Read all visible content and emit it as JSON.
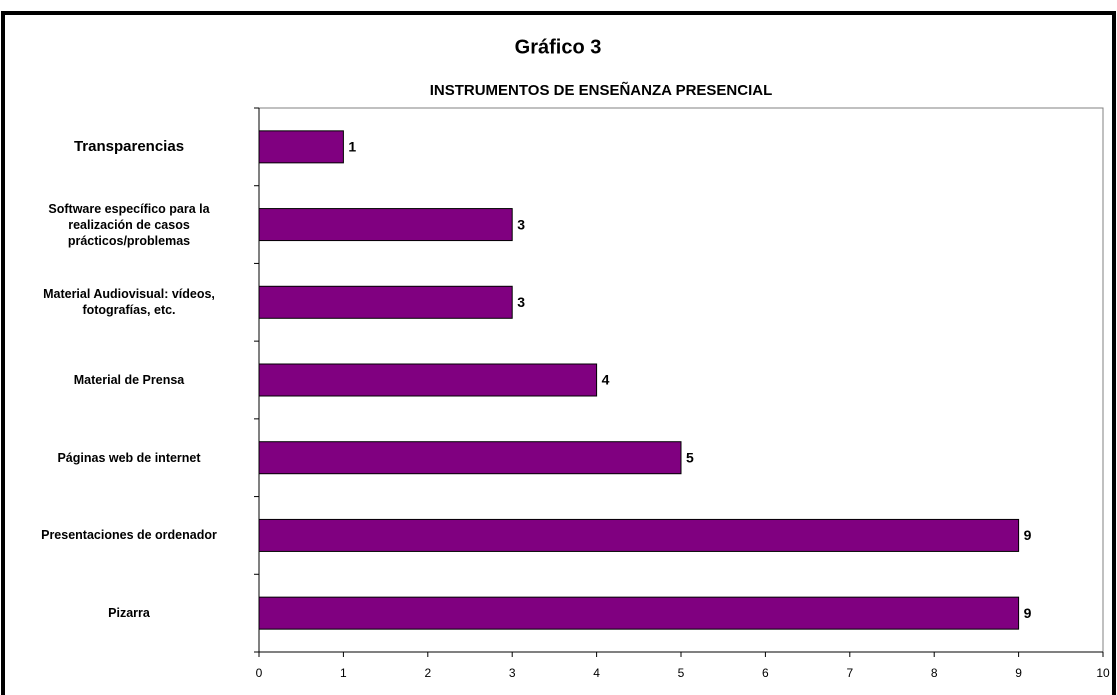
{
  "chart_data": {
    "type": "bar",
    "orientation": "horizontal",
    "title": "Gráfico 3",
    "subtitle": "INSTRUMENTOS DE ENSEÑANZA PRESENCIAL",
    "categories": [
      "Transparencias",
      "Software específico para la\nrealización de casos\nprácticos/problemas",
      "Material Audiovisual: vídeos,\nfotografías, etc.",
      "Material de Prensa",
      "Páginas web de internet",
      "Presentaciones de ordenador",
      "Pizarra"
    ],
    "values": [
      1,
      3,
      3,
      4,
      5,
      9,
      9
    ],
    "color": "#800080",
    "xlim": [
      0,
      10
    ],
    "xticks": [
      0,
      1,
      2,
      3,
      4,
      5,
      6,
      7,
      8,
      9,
      10
    ],
    "grid": false
  }
}
